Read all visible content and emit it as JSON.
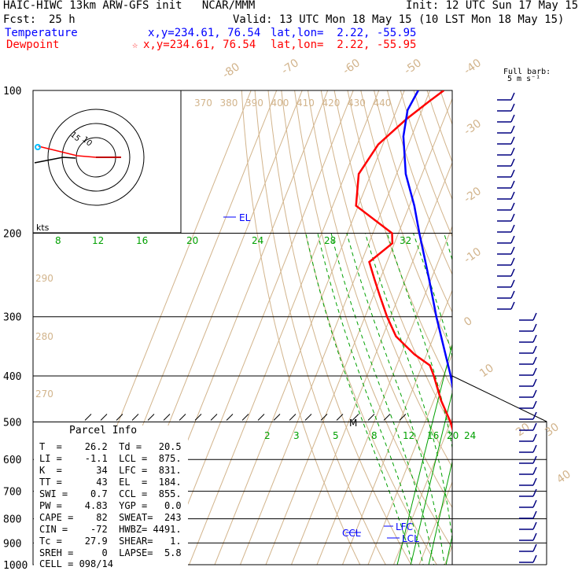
{
  "header": {
    "title_left": "HAIC-HIWC 13km ARW-GFS init   NCAR/MMM",
    "init": "Init: 12 UTC Sun 17 May 15",
    "fcst_label": "Fcst:",
    "fcst_value": "25 h",
    "valid": "Valid: 13 UTC Mon 18 May 15 (10 LST Mon 18 May 15)",
    "temperature_label": "Temperature",
    "temperature_xy": "x,y=234.61, 76.54",
    "temperature_latlon": "lat,lon=  2.22, -55.95",
    "dewpoint_label": "Dewpoint",
    "dewpoint_marker": "☆",
    "dewpoint_xy": "x,y=234.61, 76.54",
    "dewpoint_latlon": "lat,lon=  2.22, -55.95"
  },
  "colors": {
    "temperature": "#0000ff",
    "dewpoint": "#ff0000",
    "theta": "#d2b48c",
    "mixing_ratio": "#00a000",
    "barbs": "#000080",
    "isobar": "#000000",
    "marker": "#00bfff"
  },
  "chart_data": {
    "type": "skew-t",
    "pressure_levels": [
      100,
      200,
      300,
      400,
      500,
      600,
      700,
      800,
      900,
      1000
    ],
    "isotherm_labels": [
      "-80",
      "-70",
      "-60",
      "-50",
      "-40",
      "-30",
      "-20",
      "-10",
      "0",
      "10",
      "20",
      "30",
      "40"
    ],
    "theta_labels": [
      "370",
      "380",
      "390",
      "400",
      "410",
      "420",
      "430",
      "440"
    ],
    "theta_labels_left": [
      "290",
      "280",
      "270"
    ],
    "mixing_ratio_upper": [
      "8",
      "12",
      "16",
      "20",
      "24",
      "28",
      "32"
    ],
    "mixing_ratio_lower": [
      "2",
      "3",
      "5",
      "8",
      "12",
      "16",
      "20",
      "24"
    ],
    "temperature_profile": [
      [
        1000,
        25.6
      ],
      [
        950,
        23.1
      ],
      [
        900,
        20.8
      ],
      [
        850,
        18.2
      ],
      [
        800,
        14.6
      ],
      [
        750,
        12.1
      ],
      [
        700,
        9.0
      ],
      [
        650,
        5.6
      ],
      [
        600,
        1.6
      ],
      [
        550,
        -2.5
      ],
      [
        500,
        -6.9
      ],
      [
        450,
        -11.8
      ],
      [
        400,
        -17.2
      ],
      [
        350,
        -24.1
      ],
      [
        300,
        -32.1
      ],
      [
        250,
        -40.8
      ],
      [
        200,
        -51.8
      ],
      [
        175,
        -58.1
      ],
      [
        150,
        -66.4
      ],
      [
        125,
        -73.2
      ],
      [
        110,
        -75.7
      ],
      [
        100,
        -74.6
      ]
    ],
    "dewpoint_profile": [
      [
        1000,
        22.8
      ],
      [
        950,
        20.3
      ],
      [
        900,
        17.8
      ],
      [
        850,
        16.9
      ],
      [
        800,
        14.0
      ],
      [
        750,
        10.9
      ],
      [
        700,
        7.6
      ],
      [
        650,
        2.3
      ],
      [
        600,
        -1.9
      ],
      [
        550,
        -4.9
      ],
      [
        500,
        -10.1
      ],
      [
        450,
        -17.2
      ],
      [
        400,
        -23.8
      ],
      [
        380,
        -27.0
      ],
      [
        360,
        -34.8
      ],
      [
        330,
        -44.8
      ],
      [
        300,
        -51.4
      ],
      [
        270,
        -57.7
      ],
      [
        250,
        -62.2
      ],
      [
        230,
        -66.9
      ],
      [
        210,
        -60.8
      ],
      [
        200,
        -62.5
      ],
      [
        175,
        -80.9
      ],
      [
        150,
        -84.8
      ],
      [
        130,
        -81.8
      ],
      [
        115,
        -74.8
      ],
      [
        105,
        -68.3
      ],
      [
        100,
        -64.6
      ]
    ],
    "annotations": [
      {
        "label": "EL",
        "pressure": 184
      },
      {
        "label": "LFC",
        "pressure": 831
      },
      {
        "label": "LCL",
        "pressure": 875
      },
      {
        "label": "CCL",
        "pressure": 855
      },
      {
        "label": "M",
        "pressure": 500
      }
    ],
    "barbs_label": "Full barb:",
    "barbs_unit": "5 m s⁻¹",
    "hodograph": {
      "unit_label": "kts",
      "ring_labels": [
        "15",
        "10"
      ]
    }
  },
  "parcel_info": {
    "title": "Parcel Info",
    "rows": [
      "T  =    26.2  Td =   20.5",
      "LI =    -1.1  LCL =  875.",
      "K  =      34  LFC =  831.",
      "TT =      43  EL  =  184.",
      "SWI =    0.7  CCL =  855.",
      "PW =    4.83  YGP =   0.0",
      "CAPE =    82  SWEAT=  243",
      "CIN =    -72  HWBZ= 4491.",
      "Tc =    27.9  SHEAR=   1.",
      "SREH =     0  LAPSE=  5.8",
      "CELL = 098/14"
    ]
  }
}
